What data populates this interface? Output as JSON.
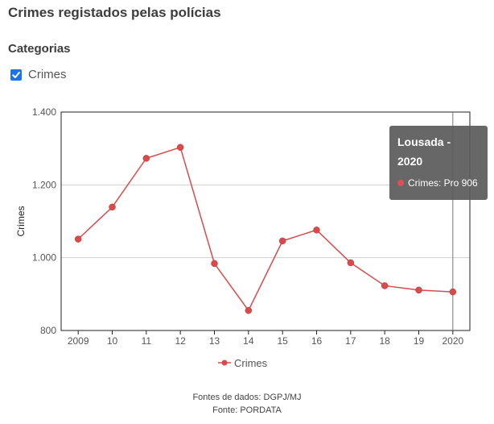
{
  "header": {
    "title": "Crimes registados pelas polícias"
  },
  "categories": {
    "heading": "Categorias",
    "items": [
      {
        "label": "Crimes",
        "checked": true
      }
    ]
  },
  "tooltip": {
    "title_line1": "Lousada -",
    "title_line2": "2020",
    "series_label": "Crimes: Pro 906"
  },
  "colors": {
    "series": "#d94a4a",
    "checkbox": "#1a73e8",
    "tooltip_bg": "#5a5a5a"
  },
  "footer": {
    "line1": "Fontes de dados: DGPJ/MJ",
    "line2": "Fonte: PORDATA"
  },
  "chart_data": {
    "type": "line",
    "x": [
      "2009",
      "10",
      "11",
      "12",
      "13",
      "14",
      "15",
      "16",
      "17",
      "18",
      "19",
      "2020"
    ],
    "series": [
      {
        "name": "Crimes",
        "values": [
          1051,
          1139,
          1273,
          1303,
          984,
          855,
          1046,
          1076,
          986,
          923,
          911,
          906
        ]
      }
    ],
    "ylabel": "Crimes",
    "xlabel": "",
    "ylim": [
      800,
      1400
    ],
    "yticks": [
      800,
      1000,
      1200,
      1400
    ],
    "ytick_labels": [
      "800",
      "1.000",
      "1.200",
      "1.400"
    ],
    "grid": true,
    "legend": "bottom-center",
    "highlight_category": "2020"
  }
}
